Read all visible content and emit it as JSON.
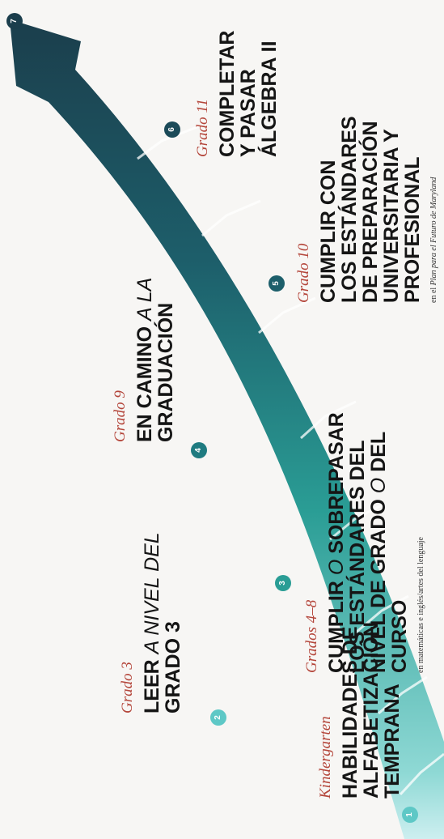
{
  "colors": {
    "light": "#8fd9d5",
    "teal": "#2a9d95",
    "dark": "#1b3e4c",
    "grade_text": "#b4463b"
  },
  "stages": [
    {
      "number": "1",
      "grade": "Kindergarten",
      "title": [
        "HABILIDADES DE",
        "ALFABETIZACIÓN",
        "TEMPRANA"
      ],
      "note": ""
    },
    {
      "number": "2",
      "grade": "Grado 3",
      "title_parts": {
        "a": "LEER",
        "b": "A NIVEL DEL",
        "c": "GRADO 3"
      },
      "note": ""
    },
    {
      "number": "3",
      "grade": "Grados 4–8",
      "title_parts": {
        "a": "CUMPLIR",
        "b": "O",
        "c": "SOBREPASAR",
        "d": "LOS ESTÁNDARES DEL",
        "e": "NIVEL DE GRADO",
        "f": "O",
        "g": "DEL",
        "h": "CURSO"
      },
      "note": "en matemáticas e inglés/artes del lenguaje"
    },
    {
      "number": "4",
      "grade": "Grado 9",
      "title_parts": {
        "a": "EN CAMINO",
        "b": "A LA",
        "c": "GRADUACIÓN"
      },
      "note": ""
    },
    {
      "number": "5",
      "grade": "Grado 10",
      "title": [
        "CUMPLIR CON",
        "LOS ESTÁNDARES",
        "DE PREPARACIÓN",
        "UNIVERSITARIA Y",
        "PROFESIONAL"
      ],
      "note_parts": {
        "a": "en el",
        "b": "Plan para el Futuro de Maryland"
      }
    },
    {
      "number": "6",
      "grade": "Grado 11",
      "title": [
        "COMPLETAR",
        "Y PASAR",
        "ÁLGEBRA II"
      ],
      "note": ""
    },
    {
      "number": "7"
    }
  ]
}
